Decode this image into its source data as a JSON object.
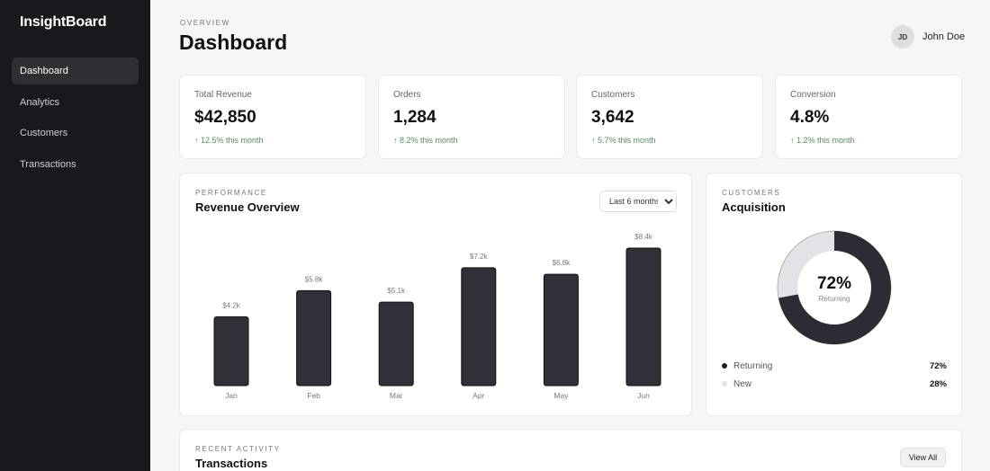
{
  "app": {
    "brand": "InsightBoard"
  },
  "sidebar": {
    "items": [
      {
        "label": "Dashboard",
        "active": true
      },
      {
        "label": "Analytics"
      },
      {
        "label": "Customers"
      },
      {
        "label": "Transactions"
      }
    ]
  },
  "header": {
    "overline": "OVERVIEW",
    "title": "Dashboard"
  },
  "user": {
    "initials": "JD",
    "name": "John Doe"
  },
  "kpis": [
    {
      "label": "Total Revenue",
      "value": "$42,850",
      "change": "↑ 12.5% this month"
    },
    {
      "label": "Orders",
      "value": "1,284",
      "change": "↑ 8.2% this month"
    },
    {
      "label": "Customers",
      "value": "3,642",
      "change": "↑ 5.7% this month"
    },
    {
      "label": "Conversion",
      "value": "4.8%",
      "change": "↑ 1.2% this month"
    }
  ],
  "performance": {
    "overline": "PERFORMANCE",
    "title": "Revenue Overview",
    "range": {
      "selected": "Last 6 months"
    }
  },
  "acquisition": {
    "overline": "CUSTOMERS",
    "title": "Acquisition",
    "center_value": "72%",
    "center_label": "Returning",
    "legend": [
      {
        "name": "Returning",
        "pct": "72%",
        "color": "#2c2c34"
      },
      {
        "name": "New",
        "pct": "28%",
        "color": "#e2e2e7"
      }
    ]
  },
  "activity": {
    "overline": "RECENT ACTIVITY",
    "title": "Transactions",
    "view_all": "View All"
  },
  "colors": {
    "bar": "#303038",
    "accent_dark": "#2c2c34",
    "ring_light": "#e2e2e7",
    "positive": "#5c8a62"
  },
  "chart_data": [
    {
      "type": "bar",
      "title": "Revenue Overview",
      "categories": [
        "Jan",
        "Feb",
        "Mar",
        "Apr",
        "May",
        "Jun"
      ],
      "values": [
        4.2,
        5.8,
        5.1,
        7.2,
        6.8,
        8.4
      ],
      "labels": [
        "$4.2k",
        "$5.8k",
        "$5.1k",
        "$7.2k",
        "$6.8k",
        "$8.4k"
      ],
      "ylim": [
        0,
        8.4
      ],
      "grid": false
    },
    {
      "type": "pie",
      "title": "Acquisition",
      "categories": [
        "Returning",
        "New"
      ],
      "values": [
        72,
        28
      ]
    }
  ]
}
